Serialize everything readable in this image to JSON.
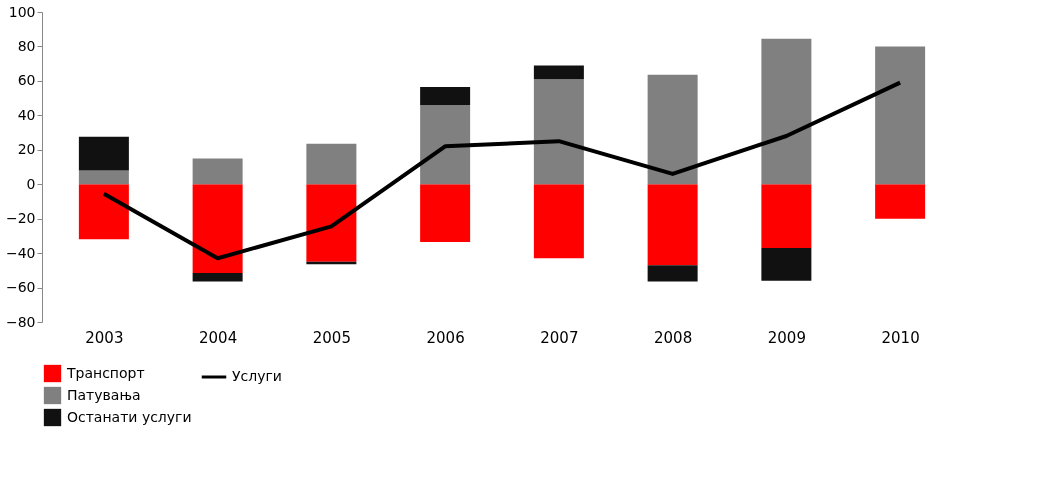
{
  "chart_data": {
    "type": "bar",
    "stacked": true,
    "categories": [
      "2003",
      "2004",
      "2005",
      "2006",
      "2007",
      "2008",
      "2009",
      "2010"
    ],
    "series": [
      {
        "name": "Транспорт",
        "color": "#ff0000",
        "values": [
          -32,
          -51.5,
          -45,
          -33.5,
          -43,
          -47,
          -37,
          -20
        ]
      },
      {
        "name": "Патувања",
        "color": "#808080",
        "values": [
          8,
          15,
          23.5,
          46,
          61,
          63.5,
          84.5,
          80
        ]
      },
      {
        "name": "Останати услуги",
        "color": "#111111",
        "values": [
          19.5,
          -5,
          -1.5,
          10.5,
          8,
          -9.5,
          -19,
          0
        ]
      },
      {
        "name": "Услуги",
        "type": "line",
        "color": "#000000",
        "values": [
          -5.5,
          -43,
          -24.5,
          22,
          25,
          6,
          28,
          59
        ]
      }
    ],
    "ylim": [
      -80,
      100
    ],
    "yticks": [
      -80,
      -60,
      -40,
      -20,
      0,
      20,
      40,
      60,
      80,
      100
    ],
    "grid": false,
    "legend": "bottom"
  }
}
